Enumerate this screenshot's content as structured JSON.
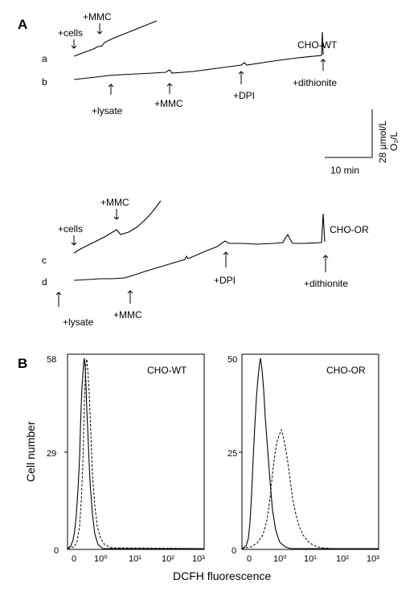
{
  "panel_a": {
    "label": "A",
    "top": {
      "line_a": "a",
      "line_b": "b",
      "cell_line": "CHO-WT",
      "cells": "+cells",
      "mmc_a": "+MMC",
      "lysate": "+lysate",
      "mmc_b": "+MMC",
      "dpi": "+DPI",
      "dithionite": "+dithionite"
    },
    "bottom": {
      "line_c": "c",
      "line_d": "d",
      "cell_line": "CHO-OR",
      "cells": "+cells",
      "mmc_c": "+MMC",
      "lysate": "+lysate",
      "mmc_d": "+MMC",
      "dpi": "+DPI",
      "dithionite": "+dithionite"
    },
    "scale_y": "28 µmol/L",
    "scale_y_unit": "O₂/L",
    "scale_x": "10 min"
  },
  "panel_b": {
    "label": "B",
    "ylabel": "Cell number",
    "xlabel": "DCFH fluorescence",
    "left": {
      "title": "CHO-WT",
      "yticks": [
        "58",
        "29",
        "0"
      ]
    },
    "right": {
      "title": "CHO-OR",
      "yticks": [
        "50",
        "25",
        "0"
      ]
    },
    "xticks": [
      "0",
      "10⁰",
      "10¹",
      "10²",
      "10³"
    ]
  }
}
